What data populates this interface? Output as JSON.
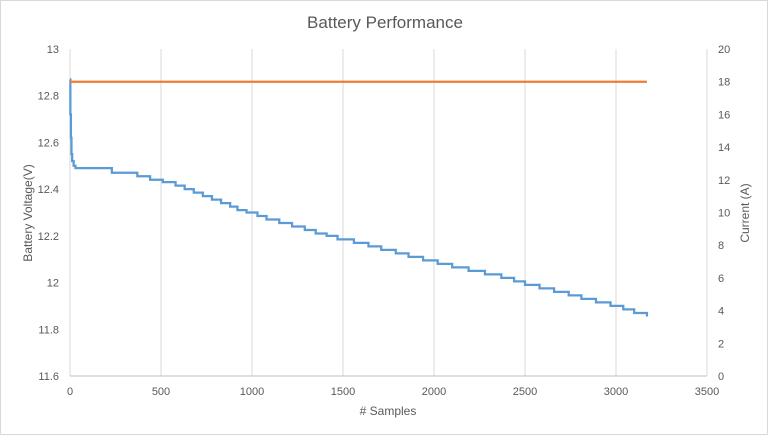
{
  "chart_data": {
    "type": "line",
    "title": "Battery Performance",
    "xlabel": "# Samples",
    "ylabel": "Battery Voltage(V)",
    "y2label": "Current (A)",
    "xlim": [
      0,
      3500
    ],
    "ylim": [
      11.6,
      13
    ],
    "y2lim": [
      0,
      20
    ],
    "x_ticks": [
      0,
      500,
      1000,
      1500,
      2000,
      2500,
      3000,
      3500
    ],
    "y_ticks": [
      11.6,
      11.8,
      12,
      12.2,
      12.4,
      12.6,
      12.8,
      13
    ],
    "y_tick_labels": [
      "11.6",
      "11.8",
      "12",
      "12.2",
      "12.4",
      "12.6",
      "12.8",
      "13"
    ],
    "y2_ticks": [
      0,
      2,
      4,
      6,
      8,
      10,
      12,
      14,
      16,
      18,
      20
    ],
    "grid": "vertical",
    "legend": "none",
    "series": [
      {
        "axis": "left",
        "color": "#5b9bd5",
        "step": true,
        "x": [
          0,
          2,
          5,
          8,
          12,
          20,
          30,
          230,
          370,
          440,
          510,
          580,
          630,
          680,
          730,
          780,
          830,
          880,
          920,
          970,
          1030,
          1080,
          1150,
          1220,
          1290,
          1350,
          1410,
          1470,
          1560,
          1640,
          1710,
          1790,
          1860,
          1940,
          2020,
          2100,
          2190,
          2280,
          2370,
          2440,
          2500,
          2580,
          2660,
          2740,
          2810,
          2890,
          2970,
          3040,
          3100,
          3170
        ],
        "y": [
          12.87,
          12.72,
          12.62,
          12.55,
          12.52,
          12.5,
          12.49,
          12.47,
          12.455,
          12.44,
          12.43,
          12.415,
          12.4,
          12.385,
          12.37,
          12.355,
          12.34,
          12.325,
          12.31,
          12.3,
          12.285,
          12.27,
          12.255,
          12.24,
          12.225,
          12.21,
          12.2,
          12.185,
          12.17,
          12.155,
          12.14,
          12.125,
          12.11,
          12.095,
          12.08,
          12.065,
          12.05,
          12.035,
          12.02,
          12.005,
          11.99,
          11.975,
          11.96,
          11.945,
          11.93,
          11.915,
          11.9,
          11.885,
          11.87,
          11.855
        ]
      },
      {
        "axis": "right",
        "color": "#ed7d31",
        "step": false,
        "x": [
          0,
          3170
        ],
        "y": [
          18,
          18
        ]
      }
    ]
  }
}
